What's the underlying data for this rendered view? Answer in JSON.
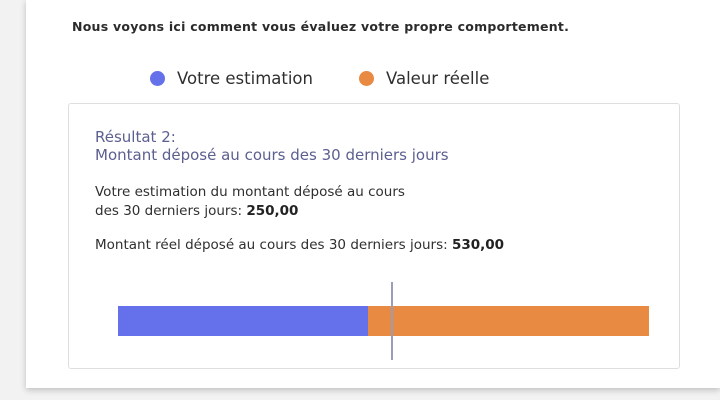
{
  "header": {
    "text": "Nous voyons ici comment vous évaluez votre propre comportement."
  },
  "legend": {
    "estimate": {
      "label": "Votre estimation",
      "color": "#6571ea"
    },
    "actual": {
      "label": "Valeur réelle",
      "color": "#e98a42"
    }
  },
  "result": {
    "number_label": "Résultat 2:",
    "subtitle": "Montant déposé au cours des 30 derniers jours",
    "estimate_line1": "Votre estimation du montant déposé au cours",
    "estimate_line2": "des 30 derniers jours: ",
    "estimate_value": "250,00",
    "actual_prefix": "Montant réel déposé au cours des 30 derniers jours: ",
    "actual_value": "530,00"
  },
  "bar": {
    "estimate_amount": 250,
    "actual_amount": 530
  }
}
